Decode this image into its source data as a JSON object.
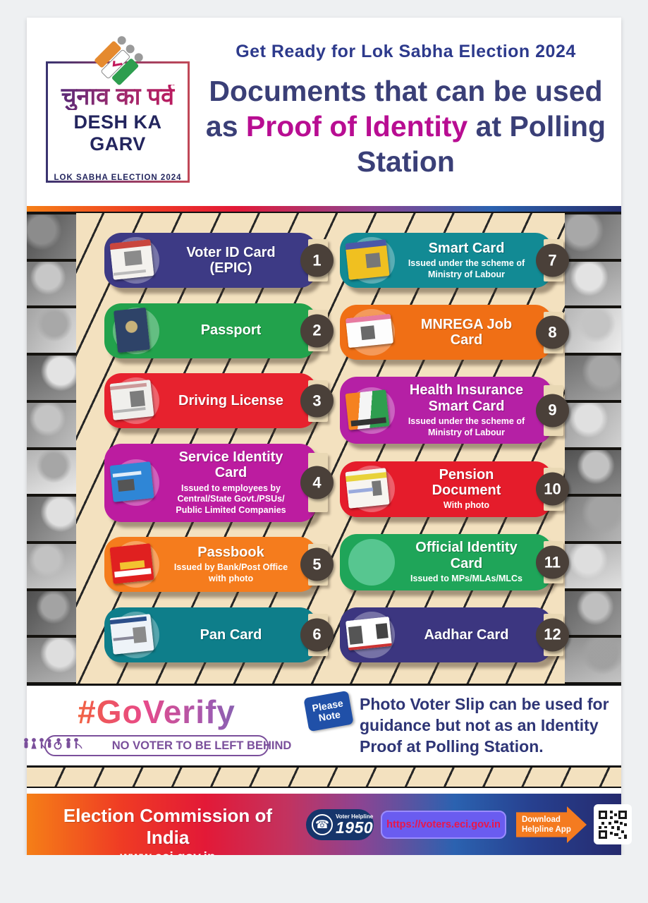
{
  "header": {
    "logo": {
      "hindi_title": "चुनाव का पर्व",
      "english_title": "DESH KA GARV",
      "subtitle": "LOK SABHA ELECTION 2024",
      "icon": "eci-tricolor-flag-icon"
    },
    "kicker": "Get Ready for Lok Sabha Election 2024",
    "title_pre": "Documents that can be used as ",
    "title_highlight": "Proof of Identity",
    "title_post": " at Polling Station"
  },
  "cards": {
    "left": [
      {
        "number": "1",
        "title": "Voter ID Card (EPIC)",
        "subtitle": "",
        "color": "#3d3a85",
        "doc": "epic"
      },
      {
        "number": "2",
        "title": "Passport",
        "subtitle": "",
        "color": "#22a24c",
        "doc": "passport"
      },
      {
        "number": "3",
        "title": "Driving License",
        "subtitle": "",
        "color": "#e7222e",
        "doc": "license"
      },
      {
        "number": "4",
        "title": "Service Identity Card",
        "subtitle": "Issued to employees by Central/State Govt./PSUs/ Public Limited Companies",
        "color": "#bc1ca0",
        "doc": "service"
      },
      {
        "number": "5",
        "title": "Passbook",
        "subtitle": "Issued by Bank/Post Office with photo",
        "color": "#f57c1d",
        "doc": "passbook"
      },
      {
        "number": "6",
        "title": "Pan Card",
        "subtitle": "",
        "color": "#0e7e8a",
        "doc": "pan"
      }
    ],
    "right": [
      {
        "number": "7",
        "title": "Smart Card",
        "subtitle": "Issued under the scheme of Ministry of Labour",
        "color": "#128a94",
        "doc": "smart"
      },
      {
        "number": "8",
        "title": "MNREGA Job Card",
        "subtitle": "",
        "color": "#f06f15",
        "doc": "mnrega"
      },
      {
        "number": "9",
        "title": "Health Insurance Smart Card",
        "subtitle": "Issued under the scheme of Ministry of Labour",
        "color": "#b520a5",
        "doc": "health"
      },
      {
        "number": "10",
        "title": "Pension Document",
        "subtitle": "With photo",
        "color": "#e51c2b",
        "doc": "pension"
      },
      {
        "number": "11",
        "title": "Official Identity Card",
        "subtitle": "Issued to MPs/MLAs/MLCs",
        "color": "#1fa559",
        "doc": "official"
      },
      {
        "number": "12",
        "title": "Aadhar Card",
        "subtitle": "",
        "color": "#3c3680",
        "doc": "aadhar"
      }
    ]
  },
  "verify": {
    "hashtag": "#GoVerify",
    "slogan": "NO VOTER TO BE LEFT BEHIND",
    "accessibility_icons": "people-and-wheelchair-icons",
    "note_badge_line1": "Please",
    "note_badge_line2": "Note",
    "note_text": "Photo Voter Slip can be used for guidance but not as an Identity Proof at Polling Station."
  },
  "footer": {
    "org": "Election Commission of India",
    "website": "www.eci.gov.in",
    "phone_icon": "phone-icon",
    "helpline_label": "Voter Helpline",
    "helpline_number": "1950",
    "url": "https://voters.eci.gov.in",
    "download_line1": "Download",
    "download_line2": "Helpline App",
    "qr_icon": "qr-code"
  },
  "colors": {
    "page_background": "#eef0f2",
    "striped_background": "#f3e1bf",
    "stripe_line": "#262626",
    "title_navy": "#3a3f77",
    "title_magenta": "#b80d92",
    "kicker_blue": "#2d3a8c",
    "slogan_purple": "#7a4f9b",
    "note_blue": "#2050a8",
    "badge_dark": "#4a4039",
    "footer_gradient": [
      "#f57f17",
      "#e31937",
      "#8c4492",
      "#252a6e"
    ],
    "arrow_orange": "#f47b20"
  }
}
